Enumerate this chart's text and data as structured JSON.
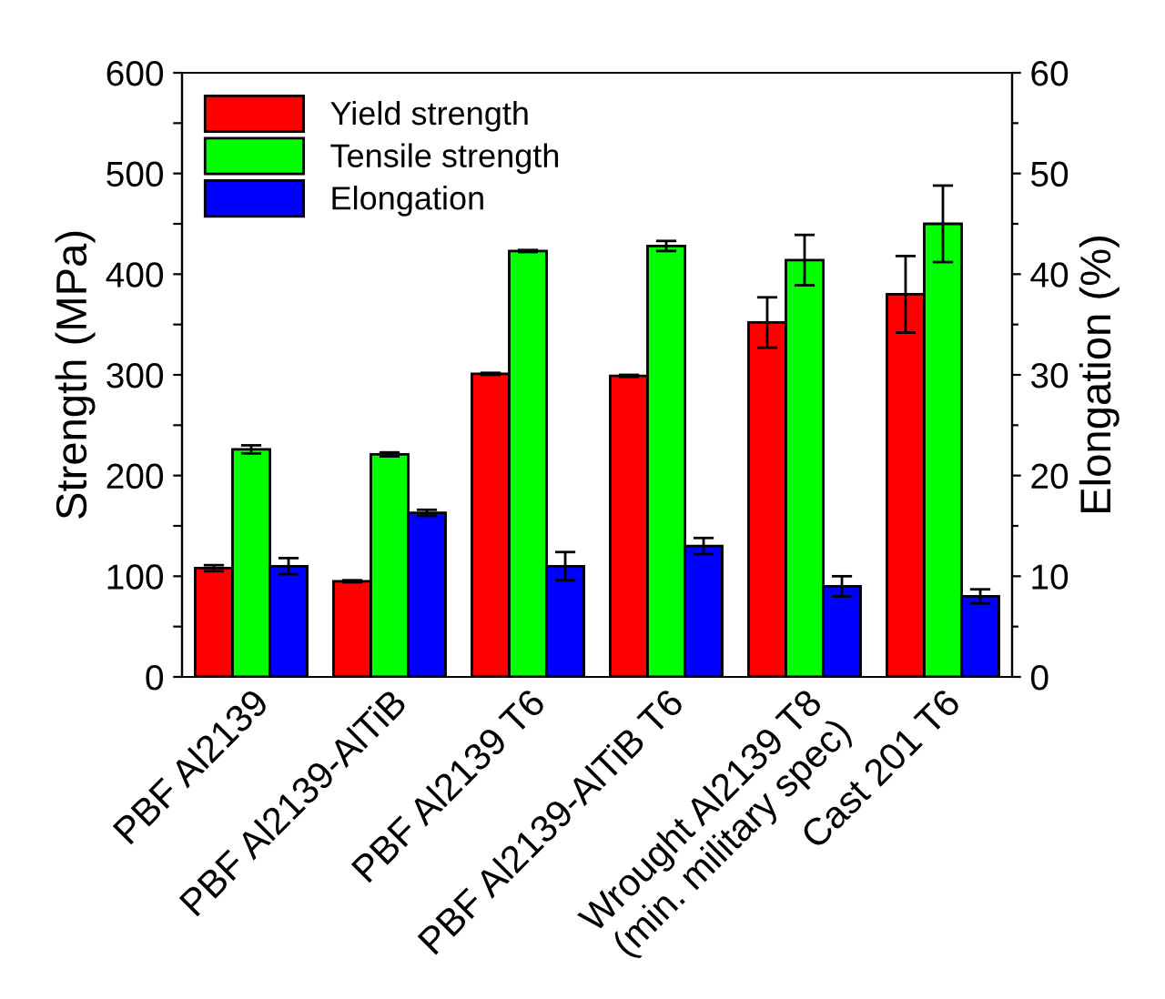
{
  "chart_data": {
    "type": "bar",
    "categories": [
      "PBF Al2139",
      "PBF Al2139-AlTiB",
      "PBF Al2139 T6",
      "PBF Al2139-AlTiB T6",
      "Wrought Al2139 T8\n(min. military spec)",
      "Cast 201 T6"
    ],
    "series": [
      {
        "name": "Yield strength",
        "color": "#ff0000",
        "values": [
          108,
          95,
          301,
          299,
          352,
          380
        ],
        "errors": [
          3,
          1,
          1,
          1,
          25,
          38
        ]
      },
      {
        "name": "Tensile strength",
        "color": "#00ff00",
        "values": [
          226,
          221,
          423,
          428,
          414,
          450
        ],
        "errors": [
          4,
          2,
          1,
          5,
          25,
          38
        ]
      },
      {
        "name": "Elongation",
        "color": "#0000ff",
        "axis": "y2",
        "values": [
          11,
          16.3,
          11,
          13,
          9,
          8
        ],
        "errors": [
          0.8,
          0.3,
          1.4,
          0.8,
          1,
          0.7
        ]
      }
    ],
    "ylabel": "Strength (MPa)",
    "y2label": "Elongation (%)",
    "ylim": [
      0,
      600
    ],
    "yticks": [
      0,
      {
        "value": 50,
        "label": null
      },
      100,
      {
        "value": 150,
        "label": null
      },
      200,
      {
        "value": 250,
        "label": null
      },
      300,
      {
        "value": 350,
        "label": null
      },
      400,
      {
        "value": 450,
        "label": null
      },
      500,
      {
        "value": 550,
        "label": null
      },
      600
    ],
    "y2lim": [
      0,
      60
    ],
    "y2ticks": [
      0,
      {
        "value": 5,
        "label": null
      },
      10,
      {
        "value": 15,
        "label": null
      },
      20,
      {
        "value": 25,
        "label": null
      },
      30,
      {
        "value": 35,
        "label": null
      },
      40,
      {
        "value": 45,
        "label": null
      },
      50,
      {
        "value": 55,
        "label": null
      },
      60
    ],
    "legend": "top left",
    "grid": false
  }
}
